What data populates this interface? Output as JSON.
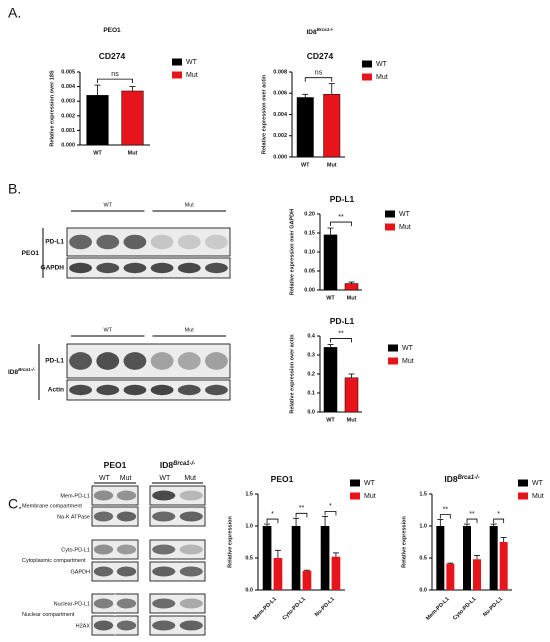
{
  "panels": [
    "A.",
    "B.",
    "C."
  ],
  "chart_data": [
    {
      "type": "bar",
      "header": "PEO1",
      "title": "CD274",
      "ylabel": "Relative expression over 18S",
      "categories": [
        "WT",
        "Mut"
      ],
      "values": [
        0.0034,
        0.0037
      ],
      "errors": [
        0.0007,
        0.0003
      ],
      "colors": [
        "#000000",
        "#e8141b"
      ],
      "ylim": [
        0,
        0.005
      ],
      "yticks": [
        {
          "value": 0,
          "label": "0.000"
        },
        {
          "value": 0.001,
          "label": "0.001"
        },
        {
          "value": 0.002,
          "label": "0.002"
        },
        {
          "value": 0.003,
          "label": "0.003"
        },
        {
          "value": 0.004,
          "label": "0.004"
        },
        {
          "value": 0.005,
          "label": "0.005"
        }
      ],
      "annotation": "ns",
      "legend": true
    },
    {
      "type": "bar",
      "header": "ID8",
      "header_sup": "Brca1-/-",
      "title": "CD274",
      "ylabel": "Relative expression over actin",
      "categories": [
        "WT",
        "Mut"
      ],
      "values": [
        0.0056,
        0.0059
      ],
      "errors": [
        0.0003,
        0.001
      ],
      "colors": [
        "#000000",
        "#e8141b"
      ],
      "ylim": [
        0,
        0.008
      ],
      "yticks": [
        {
          "value": 0,
          "label": "0.000"
        },
        {
          "value": 0.002,
          "label": "0.002"
        },
        {
          "value": 0.004,
          "label": "0.004"
        },
        {
          "value": 0.006,
          "label": "0.006"
        },
        {
          "value": 0.008,
          "label": "0.008"
        }
      ],
      "annotation": "ns",
      "legend": true
    },
    {
      "type": "bar",
      "title": "PD-L1",
      "ylabel": "Relative expression over GAPDH",
      "categories": [
        "WT",
        "Mut"
      ],
      "values": [
        0.145,
        0.017
      ],
      "errors": [
        0.018,
        0.004
      ],
      "colors": [
        "#000000",
        "#e8141b"
      ],
      "ylim": [
        0,
        0.2
      ],
      "yticks": [
        {
          "value": 0,
          "label": "0.00"
        },
        {
          "value": 0.05,
          "label": "0.05"
        },
        {
          "value": 0.1,
          "label": "0.10"
        },
        {
          "value": 0.15,
          "label": "0.15"
        },
        {
          "value": 0.2,
          "label": "0.20"
        }
      ],
      "annotation": "**",
      "legend": true
    },
    {
      "type": "bar",
      "title": "PD-L1",
      "ylabel": "Relative expression over actin",
      "categories": [
        "WT",
        "Mut"
      ],
      "values": [
        0.34,
        0.18
      ],
      "errors": [
        0.015,
        0.02
      ],
      "colors": [
        "#000000",
        "#e8141b"
      ],
      "ylim": [
        0,
        0.4
      ],
      "yticks": [
        {
          "value": 0,
          "label": "0.0"
        },
        0.1,
        0.2,
        0.3,
        0.4
      ],
      "annotation": "**",
      "legend": true
    },
    {
      "type": "grouped_bar",
      "title": "PEO1",
      "ylabel": "Relative expression",
      "categories": [
        "Mem-PD-L1",
        "Cyto-PD-L1",
        "Nu-PD-L1"
      ],
      "series": [
        {
          "name": "WT",
          "color": "#000000",
          "values": [
            1.0,
            1.0,
            1.0
          ],
          "errors": [
            0.03,
            0.12,
            0.15
          ]
        },
        {
          "name": "Mut",
          "color": "#e8141b",
          "values": [
            0.5,
            0.3,
            0.52
          ],
          "errors": [
            0.12,
            0.01,
            0.06
          ]
        }
      ],
      "ylim": [
        0,
        1.5
      ],
      "yticks": [
        {
          "value": 0,
          "label": "0.0"
        },
        0.5,
        {
          "value": 1,
          "label": "1.0"
        },
        1.5
      ],
      "annotations": [
        "*",
        "**",
        "*"
      ],
      "legend": true
    },
    {
      "type": "grouped_bar",
      "title": "ID8",
      "title_sup": "Brca1-/-",
      "ylabel": "Relative expression",
      "categories": [
        "Mem-PD-L1",
        "Cyto-PD-L1",
        "Nu-PD-L1"
      ],
      "series": [
        {
          "name": "WT",
          "color": "#000000",
          "values": [
            1.0,
            1.0,
            1.0
          ],
          "errors": [
            0.1,
            0.03,
            0.03
          ]
        },
        {
          "name": "Mut",
          "color": "#e8141b",
          "values": [
            0.41,
            0.48,
            0.75
          ],
          "errors": [
            0.01,
            0.06,
            0.07
          ]
        }
      ],
      "ylim": [
        0,
        1.5
      ],
      "yticks": [
        {
          "value": 0,
          "label": "0.0"
        },
        0.5,
        {
          "value": 1,
          "label": "1.0"
        },
        1.5
      ],
      "annotations": [
        "**",
        "**",
        "*"
      ],
      "legend": true
    }
  ],
  "blots": {
    "b_peo1": {
      "side": "PEO1",
      "groups": [
        "WT",
        "Mut"
      ],
      "rows": [
        "PD-L1",
        "GAPDH"
      ]
    },
    "b_id8": {
      "side": "ID8",
      "side_sup": "Brca1-/-",
      "groups": [
        "WT",
        "Mut"
      ],
      "rows": [
        "PD-L1",
        "Actin"
      ]
    },
    "c": {
      "columns": [
        {
          "name": "PEO1"
        },
        {
          "name": "ID8",
          "sup": "Brca1-/-"
        }
      ],
      "lanes": [
        "WT",
        "Mut"
      ],
      "compartments": [
        {
          "name": "Membrane compartment",
          "rows": [
            "Mem-PD-L1",
            "Na-K ATPase"
          ]
        },
        {
          "name": "Cytoplasmic compartment",
          "rows": [
            "Cyto-PD-L1",
            "GAPDH"
          ]
        },
        {
          "name": "Nuclear compartment",
          "rows": [
            "Nuclear-PD-L1",
            "H2AX"
          ]
        }
      ]
    }
  }
}
